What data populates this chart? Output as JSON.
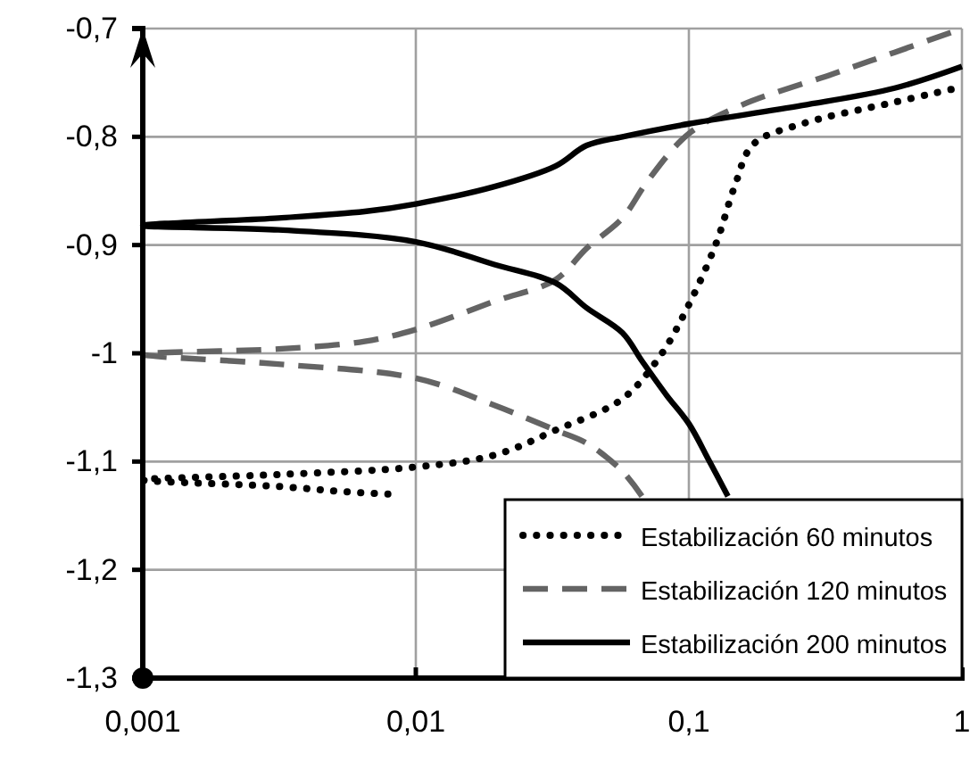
{
  "chart_data": {
    "type": "line",
    "log": "x",
    "grid": true,
    "legend": "bottom right",
    "xlim": [
      0.001,
      1
    ],
    "xticks": [
      {
        "value": 0.001,
        "label": "0,001"
      },
      {
        "value": 0.01,
        "label": "0,01"
      },
      {
        "value": 0.1,
        "label": "0,1"
      },
      {
        "value": 1,
        "label": "1"
      }
    ],
    "ylim": [
      -1.3,
      -0.7
    ],
    "yticks": [
      {
        "value": -1.3,
        "label": "-1,3"
      },
      {
        "value": -1.2,
        "label": "-1,2"
      },
      {
        "value": -1.1,
        "label": "-1,1"
      },
      {
        "value": -1,
        "label": "-1"
      },
      {
        "value": -0.9,
        "label": "-0,9"
      },
      {
        "value": -0.8,
        "label": "-0,8"
      },
      {
        "value": -0.7,
        "label": "-0,7"
      }
    ],
    "series": [
      {
        "name": "Estabilización 60 minutos",
        "color": "#000000",
        "line_style": "dotted",
        "x": [
          0.0079,
          0.0056,
          0.00314,
          0.001,
          0.00314,
          0.01,
          0.0194,
          0.0325,
          0.0571,
          0.0787,
          0.1,
          0.126,
          0.147,
          0.172,
          0.26,
          0.567,
          1
        ],
        "values": [
          -1.13,
          -1.128,
          -1.123,
          -1.117,
          -1.112,
          -1.105,
          -1.094,
          -1.071,
          -1.042,
          -1.002,
          -0.955,
          -0.898,
          -0.846,
          -0.807,
          -0.788,
          -0.768,
          -0.754
        ]
      },
      {
        "name": "Estabilización 120 minutos",
        "color": "#646464",
        "line_style": "dashed",
        "x": [
          0.0673,
          0.0571,
          0.0422,
          0.0325,
          0.0194,
          0.01,
          0.00314,
          0.001,
          0.00314,
          0.0065,
          0.01,
          0.0194,
          0.0325,
          0.0422,
          0.0571,
          0.071,
          0.1,
          0.155,
          0.336,
          0.567,
          1
        ],
        "values": [
          -1.132,
          -1.109,
          -1.083,
          -1.071,
          -1.048,
          -1.023,
          -1.01,
          -1.001,
          -0.996,
          -0.989,
          -0.978,
          -0.952,
          -0.932,
          -0.903,
          -0.875,
          -0.84,
          -0.797,
          -0.771,
          -0.742,
          -0.722,
          -0.7
        ]
      },
      {
        "name": "Estabilización 200 minutos",
        "color": "#000000",
        "line_style": "solid",
        "x": [
          0.139,
          0.119,
          0.1,
          0.083,
          0.0673,
          0.0571,
          0.0422,
          0.0325,
          0.0194,
          0.01,
          0.00314,
          0.001,
          0.00314,
          0.0065,
          0.01,
          0.0194,
          0.0325,
          0.0422,
          0.0571,
          0.1,
          0.26,
          0.567,
          1
        ],
        "values": [
          -1.132,
          -1.1,
          -1.065,
          -1.039,
          -1.007,
          -0.981,
          -0.958,
          -0.935,
          -0.918,
          -0.897,
          -0.886,
          -0.882,
          -0.875,
          -0.869,
          -0.862,
          -0.846,
          -0.827,
          -0.808,
          -0.8,
          -0.788,
          -0.771,
          -0.755,
          -0.735
        ]
      }
    ]
  }
}
